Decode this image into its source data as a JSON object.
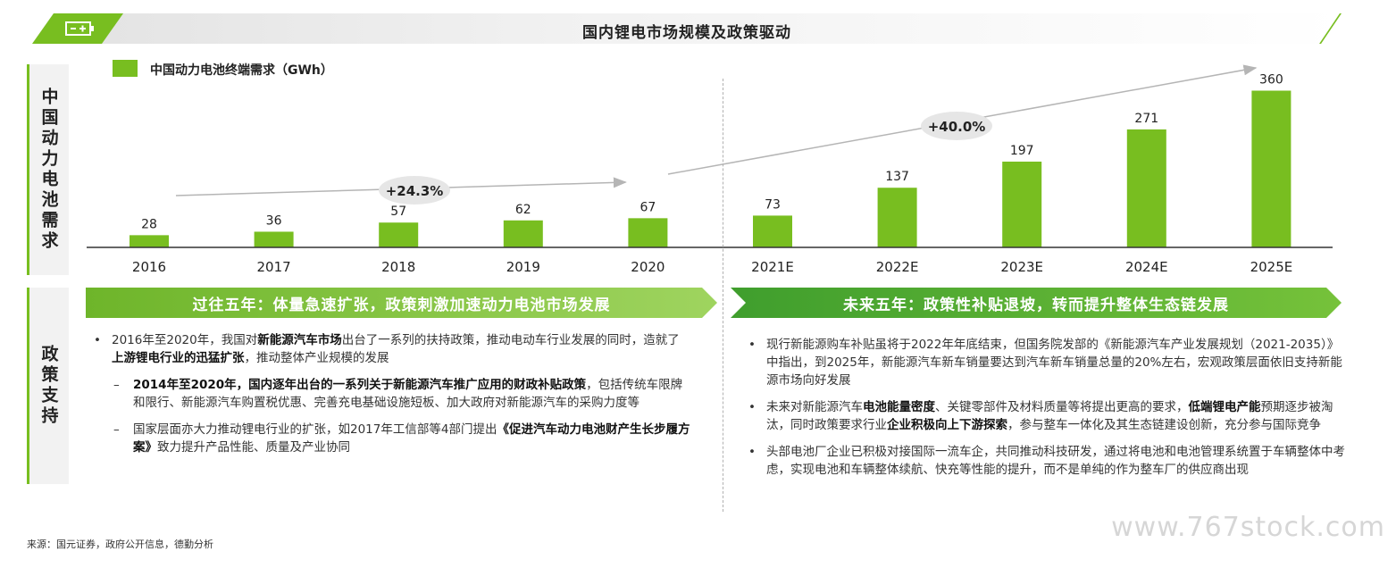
{
  "banner": {
    "title": "国内锂电市场规模及政策驱动"
  },
  "vertical_labels": {
    "demand": "中国动力电池需求",
    "policy": "政策支持"
  },
  "chart_data": {
    "type": "bar",
    "legend": "中国动力电池终端需求（GWh）",
    "categories": [
      "2016",
      "2017",
      "2018",
      "2019",
      "2020",
      "2021E",
      "2022E",
      "2023E",
      "2024E",
      "2025E"
    ],
    "values": [
      28,
      36,
      57,
      62,
      67,
      73,
      137,
      197,
      271,
      360
    ],
    "ylim": [
      0,
      400
    ],
    "color": "#78be20",
    "annotations": [
      {
        "text": "+24.3%",
        "from": "2016",
        "to": "2020"
      },
      {
        "text": "+40.0%",
        "from": "2021E",
        "to": "2025E"
      }
    ]
  },
  "sections": {
    "left_title": "过往五年：体量急速扩张，政策刺激加速动力电池市场发展",
    "right_title": "未来五年：政策性补贴退坡，转而提升整体生态链发展"
  },
  "left_bullets": {
    "b1_a": "2016年至2020年，我国对",
    "b1_b": "新能源汽车市场",
    "b1_c": "出台了一系列的扶持政策，推动电动车行业发展的同时，造就了",
    "b1_d": "上游锂电行业的迅猛扩张",
    "b1_e": "，推动整体产业规模的发展",
    "s1_a": "2014年至2020年，国内逐年出台的一系列关于新能源汽车推广应用的财政补贴政策",
    "s1_b": "，包括传统车限牌和限行、新能源汽车购置税优惠、完善充电基础设施短板、加大政府对新能源汽车的采购力度等",
    "s2_a": "国家层面亦大力推动锂电行业的扩张，如2017年工信部等4部门提出",
    "s2_b": "《促进汽车动力电池财产生长步履方案》",
    "s2_c": "致力提升产品性能、质量及产业协同"
  },
  "right_bullets": {
    "r1": "现行新能源购车补贴虽将于2022年年底结束，但国务院发部的《新能源汽车产业发展规划（2021-2035）》中指出，到2025年，新能源汽车新车销量要达到汽车新车销量总量的20%左右，宏观政策层面依旧支持新能源市场向好发展",
    "r2_a": "未来对新能源汽车",
    "r2_b": "电池能量密度",
    "r2_c": "、关键零部件及材料质量等将提出更高的要求，",
    "r2_d": "低端锂电产能",
    "r2_e": "预期逐步被淘汰，同时政策要求行业",
    "r2_f": "企业积极向上下游探索",
    "r2_g": "，参与整车一体化及其生态链建设创新，充分参与国际竞争",
    "r3": "头部电池厂企业已积极对接国际一流车企，共同推动科技研发，通过将电池和电池管理系统置于车辆整体中考虑，实现电池和车辆整体续航、快充等性能的提升，而不是单纯的作为整车厂的供应商出现"
  },
  "footer": {
    "source": "来源：国元证券，政府公开信息，德勤分析",
    "watermark": "www.767stock.com"
  },
  "colors": {
    "accent": "#78be20",
    "dark_green": "#3f9e2d"
  }
}
